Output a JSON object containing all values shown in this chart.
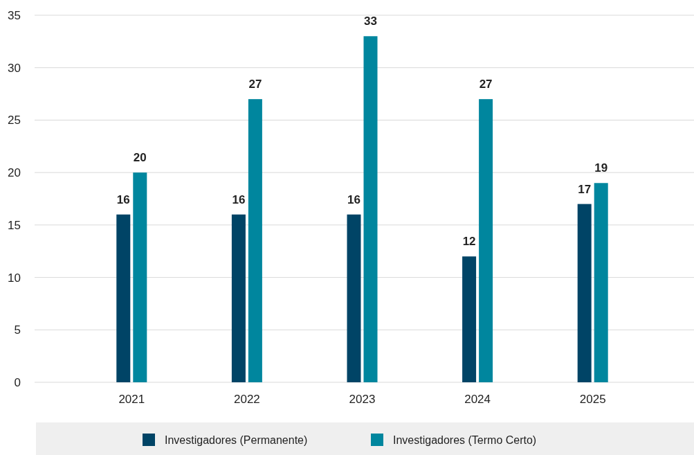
{
  "chart_data": {
    "type": "bar",
    "categories": [
      "2021",
      "2022",
      "2023",
      "2024",
      "2025"
    ],
    "series": [
      {
        "name": "Investigadores (Permanente)",
        "color": "#004466",
        "values": [
          16,
          16,
          16,
          12,
          17
        ]
      },
      {
        "name": "Investigadores (Termo Certo)",
        "color": "#00869e",
        "values": [
          20,
          27,
          33,
          27,
          19
        ]
      }
    ],
    "ylim": [
      0,
      35
    ],
    "yticks": [
      0,
      5,
      10,
      15,
      20,
      25,
      30,
      35
    ],
    "grid": "y",
    "legend": "bottom",
    "data_labels": true
  }
}
